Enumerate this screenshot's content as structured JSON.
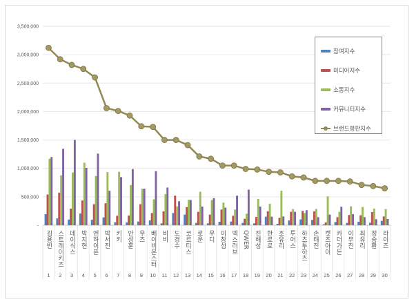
{
  "chart_data": {
    "type": "bar+line",
    "title": "",
    "xlabel": "",
    "ylabel": "",
    "ylim": [
      0,
      3500000
    ],
    "yticks": [
      "-",
      "500,000",
      "1,000,000",
      "1,500,000",
      "2,000,000",
      "2,500,000",
      "3,000,000",
      "3,500,000"
    ],
    "grid": true,
    "legend_position": "top-right",
    "categories": [
      "김용빈",
      "스트레이키즈",
      "데이식스",
      "박지현",
      "엔하이픈",
      "박서진",
      "키키",
      "안성훈",
      "우즈",
      "베이비몬스터",
      "비비",
      "도경수",
      "코르티스",
      "로운",
      "우디",
      "이창섭",
      "엑스러브",
      "QWER",
      "진해성",
      "한로로",
      "조유리",
      "투어스",
      "하츠투하츠",
      "손태진",
      "캣츠아이",
      "카더가든",
      "이무진",
      "최유리",
      "정승환",
      "라이즈"
    ],
    "ranks": [
      "1",
      "2",
      "3",
      "4",
      "5",
      "6",
      "7",
      "8",
      "9",
      "10",
      "11",
      "12",
      "13",
      "14",
      "15",
      "16",
      "17",
      "18",
      "19",
      "20",
      "21",
      "22",
      "23",
      "24",
      "25",
      "26",
      "27",
      "28",
      "29",
      "30"
    ],
    "series": [
      {
        "name": "참여지수",
        "type": "bar",
        "color": "#4f81bd",
        "values": [
          195000,
          120000,
          100000,
          207000,
          98000,
          138000,
          53000,
          49000,
          65000,
          85000,
          33000,
          215000,
          187000,
          41000,
          33000,
          61000,
          65000,
          41000,
          33000,
          150000,
          24000,
          85000,
          102000,
          94000,
          16000,
          57000,
          41000,
          61000,
          45000,
          77000
        ]
      },
      {
        "name": "미디어지수",
        "type": "bar",
        "color": "#c0504d",
        "values": [
          540000,
          573000,
          293000,
          435000,
          370000,
          386000,
          167000,
          171000,
          370000,
          215000,
          244000,
          520000,
          317000,
          236000,
          187000,
          276000,
          167000,
          114000,
          146000,
          244000,
          130000,
          236000,
          252000,
          244000,
          49000,
          142000,
          179000,
          175000,
          232000,
          154000
        ]
      },
      {
        "name": "소통지수",
        "type": "bar",
        "color": "#9bbb59",
        "values": [
          1170000,
          878000,
          927000,
          1100000,
          866000,
          935000,
          939000,
          707000,
          642000,
          455000,
          549000,
          333000,
          447000,
          589000,
          443000,
          398000,
          276000,
          203000,
          463000,
          378000,
          606000,
          285000,
          215000,
          285000,
          508000,
          236000,
          333000,
          321000,
          293000,
          285000
        ]
      },
      {
        "name": "커뮤니티지수",
        "type": "bar",
        "color": "#8064a2",
        "values": [
          1200000,
          1345000,
          1500000,
          1010000,
          1260000,
          606000,
          846000,
          988000,
          642000,
          951000,
          663000,
          423000,
          443000,
          329000,
          476000,
          309000,
          520000,
          626000,
          329000,
          150000,
          154000,
          236000,
          264000,
          142000,
          187000,
          325000,
          195000,
          142000,
          106000,
          110000
        ]
      },
      {
        "name": "브랜드평판지수",
        "type": "line",
        "color": "#938953",
        "values": [
          3120000,
          2920000,
          2820000,
          2750000,
          2600000,
          2060000,
          2010000,
          1930000,
          1740000,
          1730000,
          1500000,
          1500000,
          1410000,
          1210000,
          1170000,
          1050000,
          1050000,
          990000,
          980000,
          940000,
          930000,
          860000,
          840000,
          780000,
          780000,
          780000,
          770000,
          710000,
          690000,
          650000
        ]
      }
    ]
  }
}
